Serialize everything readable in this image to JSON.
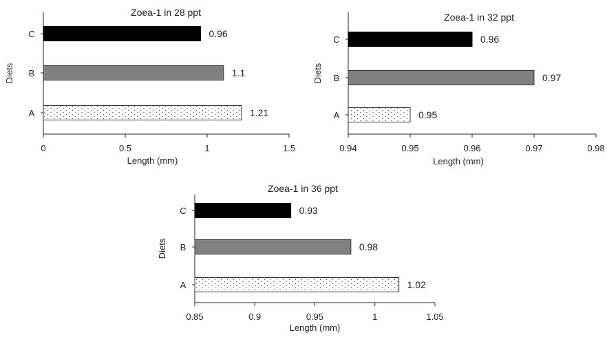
{
  "chart_data": [
    {
      "type": "bar",
      "orientation": "horizontal",
      "title": "Zoea-1 in 28 ppt",
      "xlabel": "Length (mm)",
      "ylabel": "Diets",
      "categories": [
        "C",
        "B",
        "A"
      ],
      "values": [
        0.96,
        1.1,
        1.21
      ],
      "data_labels": [
        "0.96",
        "1.1",
        "1.21"
      ],
      "xlim": [
        0,
        1.5
      ],
      "xticks": [
        "0",
        "0.5",
        "1",
        "1.5"
      ],
      "bar_fills": [
        "solid-black",
        "solid-gray",
        "dotted-white"
      ]
    },
    {
      "type": "bar",
      "orientation": "horizontal",
      "title": "Zoea-1 in 32 ppt",
      "xlabel": "Length (mm)",
      "ylabel": "Diets",
      "categories": [
        "C",
        "B",
        "A"
      ],
      "values": [
        0.96,
        0.97,
        0.95
      ],
      "data_labels": [
        "0.96",
        "0.97",
        "0.95"
      ],
      "xlim": [
        0.94,
        0.98
      ],
      "xticks": [
        "0.94",
        "0.95",
        "0.96",
        "0.97",
        "0.98"
      ],
      "bar_fills": [
        "solid-black",
        "solid-gray",
        "dotted-white"
      ]
    },
    {
      "type": "bar",
      "orientation": "horizontal",
      "title": "Zoea-1 in 36 ppt",
      "xlabel": "Length (mm)",
      "ylabel": "Diets",
      "categories": [
        "C",
        "B",
        "A"
      ],
      "values": [
        0.93,
        0.98,
        1.02
      ],
      "data_labels": [
        "0.93",
        "0.98",
        "1.02"
      ],
      "xlim": [
        0.85,
        1.05
      ],
      "xticks": [
        "0.85",
        "0.9",
        "0.95",
        "1",
        "1.05"
      ],
      "bar_fills": [
        "solid-black",
        "solid-gray",
        "dotted-white"
      ]
    }
  ],
  "colors": {
    "bar_black": "#000000",
    "bar_gray": "#808080",
    "bar_dotted_bg": "#ffffff",
    "bar_dot": "#555555",
    "axis": "#222222"
  }
}
